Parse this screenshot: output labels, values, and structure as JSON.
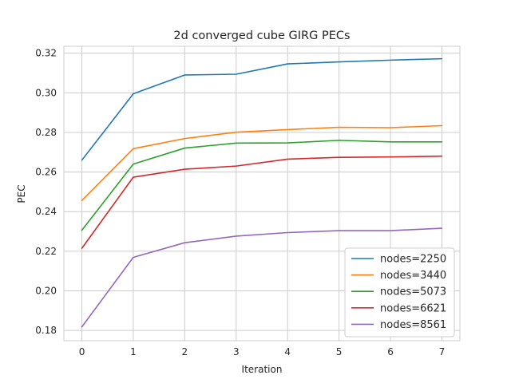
{
  "chart_data": {
    "type": "line",
    "title": "2d converged cube GIRG PECs",
    "xlabel": "Iteration",
    "ylabel": "PEC",
    "x": [
      0,
      1,
      2,
      3,
      4,
      5,
      6,
      7
    ],
    "xlim": [
      -0.35,
      7.35
    ],
    "ylim": [
      0.1748,
      0.3235
    ],
    "xticks": [
      0,
      1,
      2,
      3,
      4,
      5,
      6,
      7
    ],
    "yticks": [
      0.18,
      0.2,
      0.22,
      0.24,
      0.26,
      0.28,
      0.3,
      0.32
    ],
    "ytick_labels": [
      "0.18",
      "0.20",
      "0.22",
      "0.24",
      "0.26",
      "0.28",
      "0.30",
      "0.32"
    ],
    "grid": true,
    "legend_position": "lower-right",
    "series": [
      {
        "name": "nodes=2250",
        "color": "#1f77b4",
        "values": [
          0.266,
          0.2995,
          0.309,
          0.3094,
          0.3146,
          0.3156,
          0.3165,
          0.3172
        ]
      },
      {
        "name": "nodes=3440",
        "color": "#ff7f0e",
        "values": [
          0.2456,
          0.2718,
          0.2769,
          0.2801,
          0.2814,
          0.2826,
          0.2824,
          0.2834
        ]
      },
      {
        "name": "nodes=5073",
        "color": "#2ca02c",
        "values": [
          0.2306,
          0.264,
          0.2721,
          0.2746,
          0.2747,
          0.276,
          0.2752,
          0.2752
        ]
      },
      {
        "name": "nodes=6621",
        "color": "#d62728",
        "values": [
          0.2215,
          0.2574,
          0.2614,
          0.263,
          0.2665,
          0.2674,
          0.2676,
          0.268
        ]
      },
      {
        "name": "nodes=8561",
        "color": "#9467bd",
        "values": [
          0.1818,
          0.2169,
          0.2243,
          0.2276,
          0.2294,
          0.2304,
          0.2304,
          0.2316
        ]
      }
    ]
  }
}
